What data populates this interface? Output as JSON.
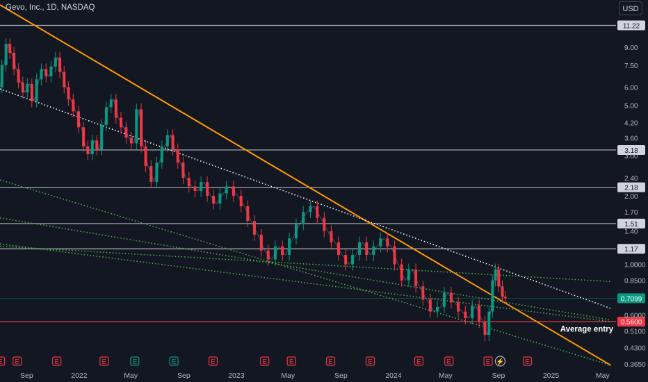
{
  "header": {
    "title": "Gevo, Inc., 1D, NASDAQ",
    "currency": "USD"
  },
  "chart_data": {
    "type": "line",
    "title": "Gevo, Inc., 1D, NASDAQ",
    "yscale": "log",
    "ylim": [
      0.35,
      14.5
    ],
    "xlim": [
      "2021-07-01",
      "2025-06-01"
    ],
    "y_ticks": [
      "9.00",
      "7.50",
      "6.00",
      "5.00",
      "4.20",
      "3.60",
      "3.00",
      "2.40",
      "2.00",
      "1.70",
      "1.40",
      "1.00",
      "1.0000",
      "0.8500",
      "0.6000",
      "0.5100",
      "0.4300",
      "0.3650"
    ],
    "x_ticks": [
      {
        "label": "Sep",
        "date": "2021-09-01"
      },
      {
        "label": "2022",
        "date": "2022-01-01"
      },
      {
        "label": "May",
        "date": "2022-05-01"
      },
      {
        "label": "Sep",
        "date": "2022-09-01"
      },
      {
        "label": "2023",
        "date": "2023-01-01"
      },
      {
        "label": "May",
        "date": "2023-05-01"
      },
      {
        "label": "Sep",
        "date": "2023-09-01"
      },
      {
        "label": "2024",
        "date": "2024-01-01"
      },
      {
        "label": "May",
        "date": "2024-05-01"
      },
      {
        "label": "Sep",
        "date": "2024-09-01"
      },
      {
        "label": "2025",
        "date": "2025-01-01"
      },
      {
        "label": "May",
        "date": "2025-05-01"
      }
    ],
    "price_series": {
      "name": "",
      "points": [
        [
          "2021-07-01",
          6.0
        ],
        [
          "2021-07-10",
          7.5
        ],
        [
          "2021-07-20",
          9.3
        ],
        [
          "2021-07-28",
          8.5
        ],
        [
          "2021-08-08",
          7.2
        ],
        [
          "2021-08-18",
          6.3
        ],
        [
          "2021-08-28",
          5.7
        ],
        [
          "2021-09-08",
          6.2
        ],
        [
          "2021-09-18",
          5.2
        ],
        [
          "2021-09-30",
          6.5
        ],
        [
          "2021-10-10",
          7.2
        ],
        [
          "2021-10-22",
          6.7
        ],
        [
          "2021-11-02",
          7.4
        ],
        [
          "2021-11-12",
          8.1
        ],
        [
          "2021-11-22",
          7.0
        ],
        [
          "2021-12-02",
          6.0
        ],
        [
          "2021-12-12",
          5.3
        ],
        [
          "2021-12-24",
          4.7
        ],
        [
          "2022-01-06",
          4.0
        ],
        [
          "2022-01-16",
          3.3
        ],
        [
          "2022-01-26",
          3.05
        ],
        [
          "2022-02-06",
          3.5
        ],
        [
          "2022-02-16",
          3.2
        ],
        [
          "2022-02-28",
          4.1
        ],
        [
          "2022-03-10",
          4.9
        ],
        [
          "2022-03-22",
          5.3
        ],
        [
          "2022-04-02",
          4.4
        ],
        [
          "2022-04-14",
          4.0
        ],
        [
          "2022-04-26",
          3.6
        ],
        [
          "2022-05-08",
          3.4
        ],
        [
          "2022-05-20",
          4.8
        ],
        [
          "2022-05-30",
          3.3
        ],
        [
          "2022-06-10",
          2.7
        ],
        [
          "2022-06-24",
          2.3
        ],
        [
          "2022-07-06",
          2.8
        ],
        [
          "2022-07-18",
          3.3
        ],
        [
          "2022-08-01",
          3.7
        ],
        [
          "2022-08-12",
          3.2
        ],
        [
          "2022-08-24",
          2.8
        ],
        [
          "2022-09-06",
          2.4
        ],
        [
          "2022-09-20",
          2.2
        ],
        [
          "2022-10-04",
          2.1
        ],
        [
          "2022-10-18",
          2.3
        ],
        [
          "2022-11-02",
          2.0
        ],
        [
          "2022-11-16",
          1.85
        ],
        [
          "2022-12-02",
          2.05
        ],
        [
          "2022-12-16",
          2.2
        ],
        [
          "2023-01-04",
          2.0
        ],
        [
          "2023-01-20",
          1.8
        ],
        [
          "2023-02-04",
          1.55
        ],
        [
          "2023-02-20",
          1.35
        ],
        [
          "2023-03-08",
          1.15
        ],
        [
          "2023-03-24",
          1.05
        ],
        [
          "2023-04-10",
          1.2
        ],
        [
          "2023-04-26",
          1.1
        ],
        [
          "2023-05-12",
          1.3
        ],
        [
          "2023-05-28",
          1.5
        ],
        [
          "2023-06-14",
          1.7
        ],
        [
          "2023-06-30",
          1.8
        ],
        [
          "2023-07-16",
          1.6
        ],
        [
          "2023-08-01",
          1.4
        ],
        [
          "2023-08-18",
          1.25
        ],
        [
          "2023-09-04",
          1.1
        ],
        [
          "2023-09-20",
          1.0
        ],
        [
          "2023-10-06",
          1.1
        ],
        [
          "2023-10-22",
          1.25
        ],
        [
          "2023-11-08",
          1.1
        ],
        [
          "2023-11-24",
          1.2
        ],
        [
          "2023-12-10",
          1.3
        ],
        [
          "2023-12-26",
          1.2
        ],
        [
          "2024-01-12",
          1.0
        ],
        [
          "2024-01-28",
          0.85
        ],
        [
          "2024-02-14",
          0.95
        ],
        [
          "2024-03-01",
          0.8
        ],
        [
          "2024-03-18",
          0.7
        ],
        [
          "2024-04-04",
          0.62
        ],
        [
          "2024-04-20",
          0.65
        ],
        [
          "2024-05-06",
          0.75
        ],
        [
          "2024-05-22",
          0.68
        ],
        [
          "2024-06-08",
          0.62
        ],
        [
          "2024-06-24",
          0.58
        ],
        [
          "2024-07-10",
          0.66
        ],
        [
          "2024-07-26",
          0.56
        ],
        [
          "2024-08-06",
          0.49
        ],
        [
          "2024-08-14",
          0.62
        ],
        [
          "2024-08-22",
          0.85
        ],
        [
          "2024-08-28",
          0.95
        ],
        [
          "2024-09-06",
          0.8
        ],
        [
          "2024-09-14",
          0.72
        ],
        [
          "2024-09-20",
          0.71
        ]
      ]
    },
    "horizontal_levels": [
      {
        "price": 11.22,
        "label": "11.22",
        "color": "#b2b5be"
      },
      {
        "price": 3.18,
        "label": "3.18",
        "color": "#b2b5be"
      },
      {
        "price": 2.18,
        "label": "2.18",
        "color": "#b2b5be"
      },
      {
        "price": 1.51,
        "label": "1.51",
        "color": "#b2b5be"
      },
      {
        "price": 1.17,
        "label": "1.17",
        "color": "#b2b5be"
      },
      {
        "price": 0.56,
        "label": "0.5600",
        "color": "#f23645"
      }
    ],
    "current_price": {
      "price": 0.7099,
      "label": "0.7099",
      "color": "#089981"
    },
    "annotations": [
      {
        "text": "Average entry",
        "price": 0.52
      }
    ],
    "trendlines": [
      {
        "style": "solid",
        "color": "#ff9800",
        "from": [
          "2021-07-01",
          13.8
        ],
        "to": [
          "2025-05-20",
          0.36
        ]
      },
      {
        "style": "dotted",
        "color": "#ffffff",
        "from": [
          "2021-07-01",
          5.9
        ],
        "to": [
          "2025-05-20",
          0.64
        ]
      },
      {
        "style": "dotted",
        "color": "#4caf50",
        "from": [
          "2021-07-01",
          2.35
        ],
        "to": [
          "2025-05-20",
          0.36
        ]
      },
      {
        "style": "dotted",
        "color": "#4caf50",
        "from": [
          "2021-07-01",
          1.6
        ],
        "to": [
          "2025-05-20",
          0.57
        ]
      },
      {
        "style": "dotted",
        "color": "#4caf50",
        "from": [
          "2021-07-01",
          1.23
        ],
        "to": [
          "2025-05-20",
          0.56
        ]
      },
      {
        "style": "dotted",
        "color": "#4caf50",
        "from": [
          "2021-07-01",
          1.2
        ],
        "to": [
          "2025-05-20",
          0.84
        ]
      }
    ],
    "events": [
      {
        "label": "E",
        "date": "2021-07-02",
        "kind": "earnings",
        "color": "#f23645"
      },
      {
        "label": "E",
        "date": "2021-08-10",
        "kind": "earnings",
        "color": "#f23645"
      },
      {
        "label": "E",
        "date": "2021-11-10",
        "kind": "earnings",
        "color": "#f23645"
      },
      {
        "label": "E",
        "date": "2022-02-28",
        "kind": "earnings",
        "color": "#f23645"
      },
      {
        "label": "E",
        "date": "2022-05-10",
        "kind": "earnings",
        "color": "#089981"
      },
      {
        "label": "E",
        "date": "2022-08-09",
        "kind": "earnings",
        "color": "#089981"
      },
      {
        "label": "E",
        "date": "2022-11-08",
        "kind": "earnings",
        "color": "#f23645"
      },
      {
        "label": "E",
        "date": "2023-03-08",
        "kind": "earnings",
        "color": "#f23645"
      },
      {
        "label": "E",
        "date": "2023-05-09",
        "kind": "earnings",
        "color": "#f23645"
      },
      {
        "label": "E",
        "date": "2023-08-08",
        "kind": "earnings",
        "color": "#f23645"
      },
      {
        "label": "E",
        "date": "2023-11-08",
        "kind": "earnings",
        "color": "#f23645"
      },
      {
        "label": "E",
        "date": "2024-02-29",
        "kind": "earnings",
        "color": "#f23645"
      },
      {
        "label": "E",
        "date": "2024-05-09",
        "kind": "earnings",
        "color": "#f23645"
      },
      {
        "label": "E",
        "date": "2024-08-08",
        "kind": "earnings",
        "color": "#f23645"
      },
      {
        "label": "",
        "date": "2024-09-05",
        "kind": "dividend",
        "color": "#b2b5be"
      },
      {
        "label": "E",
        "date": "2024-11-07",
        "kind": "earnings",
        "color": "#f23645"
      }
    ]
  }
}
